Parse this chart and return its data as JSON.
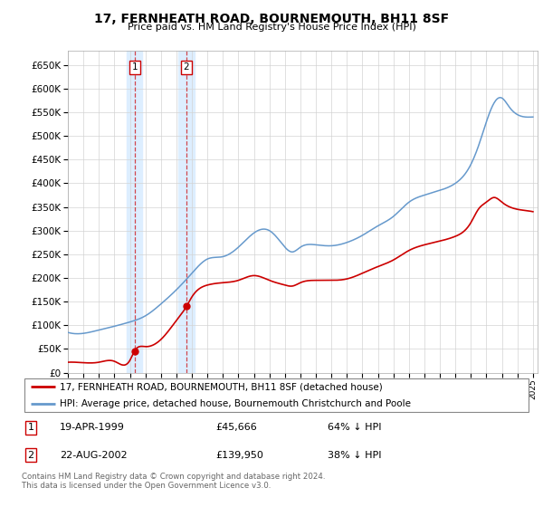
{
  "title": "17, FERNHEATH ROAD, BOURNEMOUTH, BH11 8SF",
  "subtitle": "Price paid vs. HM Land Registry's House Price Index (HPI)",
  "property_label": "17, FERNHEATH ROAD, BOURNEMOUTH, BH11 8SF (detached house)",
  "hpi_label": "HPI: Average price, detached house, Bournemouth Christchurch and Poole",
  "footnote": "Contains HM Land Registry data © Crown copyright and database right 2024.\nThis data is licensed under the Open Government Licence v3.0.",
  "transaction1_date": "19-APR-1999",
  "transaction1_price": "£45,666",
  "transaction1_hpi": "64% ↓ HPI",
  "transaction2_date": "22-AUG-2002",
  "transaction2_price": "£139,950",
  "transaction2_hpi": "38% ↓ HPI",
  "property_color": "#cc0000",
  "hpi_color": "#6699cc",
  "highlight_color": "#ddeeff",
  "ylim_min": 0,
  "ylim_max": 680000,
  "year_start": 1995,
  "year_end": 2025,
  "transaction1_year": 1999.3,
  "transaction2_year": 2002.65,
  "hpi_keypoints": [
    [
      1995.0,
      85000
    ],
    [
      1996.0,
      83000
    ],
    [
      1997.0,
      90000
    ],
    [
      1998.0,
      98000
    ],
    [
      1999.0,
      107000
    ],
    [
      2000.0,
      120000
    ],
    [
      2001.0,
      145000
    ],
    [
      2002.0,
      175000
    ],
    [
      2003.0,
      210000
    ],
    [
      2004.0,
      240000
    ],
    [
      2005.0,
      245000
    ],
    [
      2006.0,
      265000
    ],
    [
      2007.0,
      295000
    ],
    [
      2008.0,
      300000
    ],
    [
      2008.5,
      285000
    ],
    [
      2009.0,
      265000
    ],
    [
      2009.5,
      255000
    ],
    [
      2010.0,
      265000
    ],
    [
      2011.0,
      270000
    ],
    [
      2012.0,
      268000
    ],
    [
      2013.0,
      275000
    ],
    [
      2014.0,
      290000
    ],
    [
      2015.0,
      310000
    ],
    [
      2016.0,
      330000
    ],
    [
      2017.0,
      360000
    ],
    [
      2018.0,
      375000
    ],
    [
      2019.0,
      385000
    ],
    [
      2020.0,
      400000
    ],
    [
      2021.0,
      440000
    ],
    [
      2021.5,
      480000
    ],
    [
      2022.0,
      530000
    ],
    [
      2022.5,
      570000
    ],
    [
      2023.0,
      580000
    ],
    [
      2023.5,
      560000
    ],
    [
      2024.0,
      545000
    ],
    [
      2025.0,
      540000
    ]
  ],
  "prop_keypoints": [
    [
      1995.0,
      22000
    ],
    [
      1996.0,
      21000
    ],
    [
      1997.0,
      22000
    ],
    [
      1998.0,
      24000
    ],
    [
      1999.0,
      26000
    ],
    [
      1999.3,
      45666
    ],
    [
      2000.0,
      55000
    ],
    [
      2001.0,
      70000
    ],
    [
      2002.0,
      110000
    ],
    [
      2002.65,
      139950
    ],
    [
      2003.0,
      160000
    ],
    [
      2004.0,
      185000
    ],
    [
      2005.0,
      190000
    ],
    [
      2006.0,
      195000
    ],
    [
      2007.0,
      205000
    ],
    [
      2008.0,
      195000
    ],
    [
      2009.0,
      185000
    ],
    [
      2009.5,
      183000
    ],
    [
      2010.0,
      190000
    ],
    [
      2011.0,
      195000
    ],
    [
      2012.0,
      195000
    ],
    [
      2013.0,
      198000
    ],
    [
      2014.0,
      210000
    ],
    [
      2015.0,
      224000
    ],
    [
      2016.0,
      238000
    ],
    [
      2017.0,
      258000
    ],
    [
      2018.0,
      270000
    ],
    [
      2019.0,
      278000
    ],
    [
      2020.0,
      288000
    ],
    [
      2021.0,
      317000
    ],
    [
      2021.5,
      346000
    ],
    [
      2022.0,
      360000
    ],
    [
      2022.5,
      370000
    ],
    [
      2023.0,
      360000
    ],
    [
      2023.5,
      350000
    ],
    [
      2024.0,
      345000
    ],
    [
      2025.0,
      340000
    ]
  ]
}
